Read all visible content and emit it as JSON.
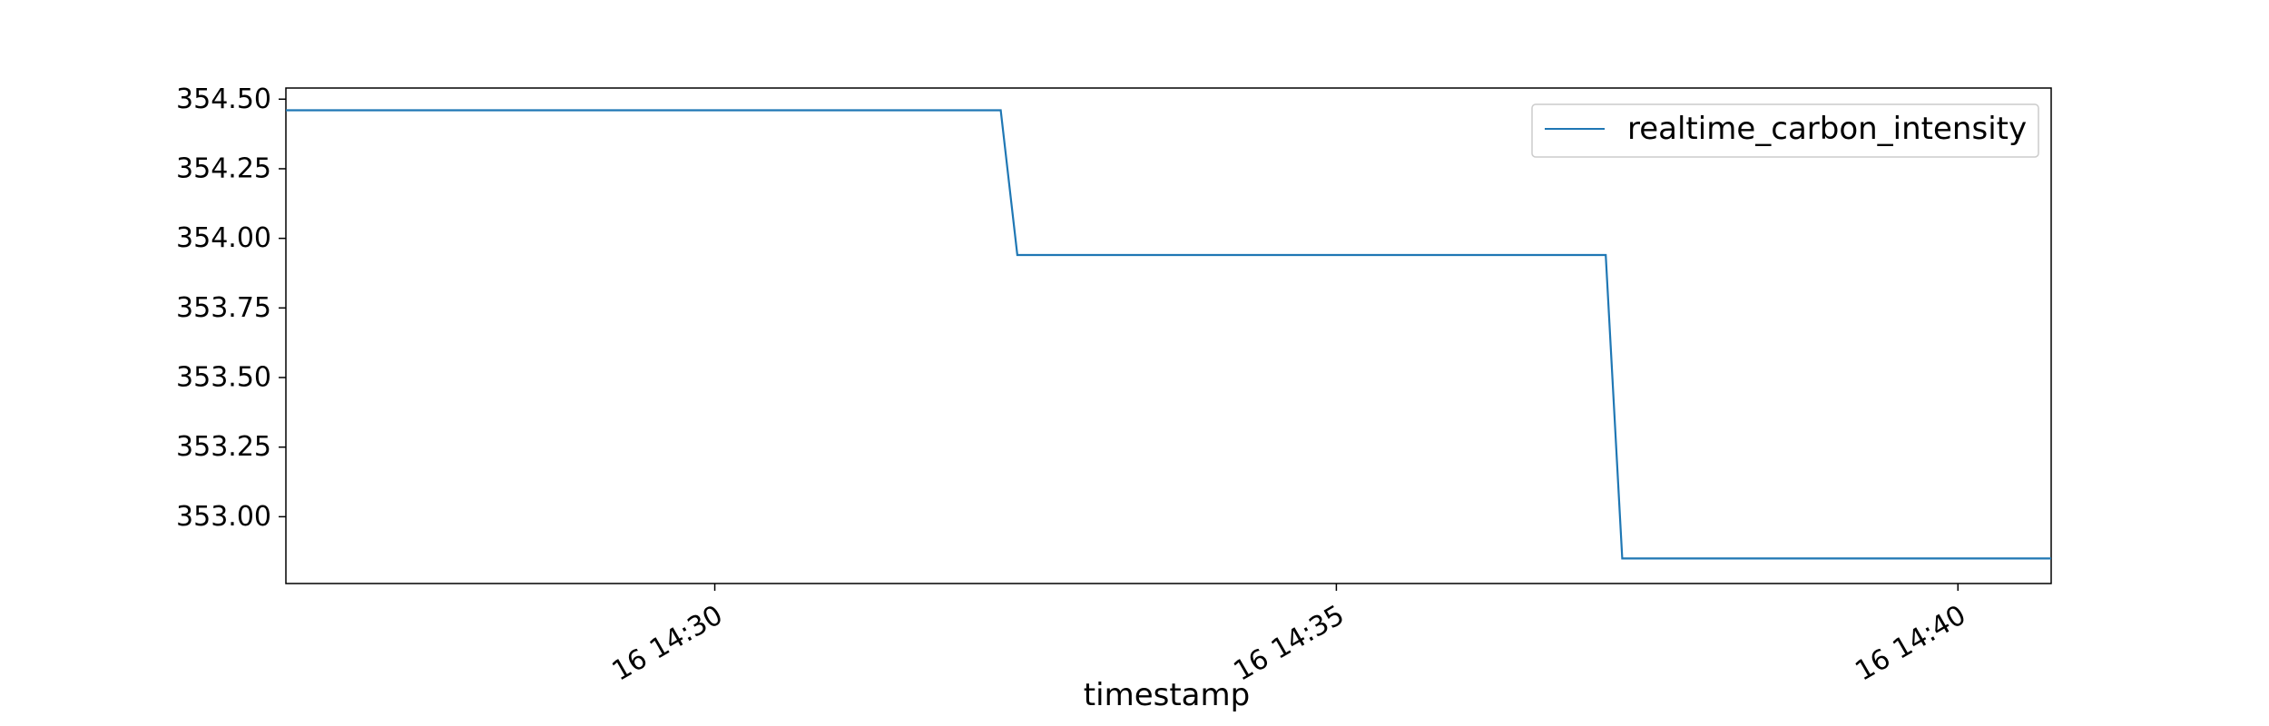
{
  "chart_data": {
    "type": "line",
    "title": "",
    "xlabel": "timestamp",
    "ylabel": "",
    "x_ticks": [
      {
        "value": "2024-01-16 14:30",
        "label": "16 14:30"
      },
      {
        "value": "2024-01-16 14:35",
        "label": "16 14:35"
      },
      {
        "value": "2024-01-16 14:40",
        "label": "16 14:40"
      }
    ],
    "xlim": [
      "2024-01-16 14:26:33",
      "2024-01-16 14:40:45"
    ],
    "y_ticks": [
      353.0,
      353.25,
      353.5,
      353.75,
      354.0,
      354.25,
      354.5
    ],
    "y_tick_labels": [
      "353.00",
      "353.25",
      "353.50",
      "353.75",
      "354.00",
      "354.25",
      "354.50"
    ],
    "ylim": [
      352.76,
      354.54
    ],
    "grid": false,
    "legend": {
      "position": "top-right",
      "entries": [
        "realtime_carbon_intensity"
      ]
    },
    "series": [
      {
        "name": "realtime_carbon_intensity",
        "color": "#1f77b4",
        "points": [
          {
            "x": "2024-01-16 14:26:33",
            "y": 354.46
          },
          {
            "x": "2024-01-16 14:32:18",
            "y": 354.46
          },
          {
            "x": "2024-01-16 14:32:26",
            "y": 353.94
          },
          {
            "x": "2024-01-16 14:37:10",
            "y": 353.94
          },
          {
            "x": "2024-01-16 14:37:18",
            "y": 352.85
          },
          {
            "x": "2024-01-16 14:40:45",
            "y": 352.85
          }
        ]
      }
    ]
  }
}
